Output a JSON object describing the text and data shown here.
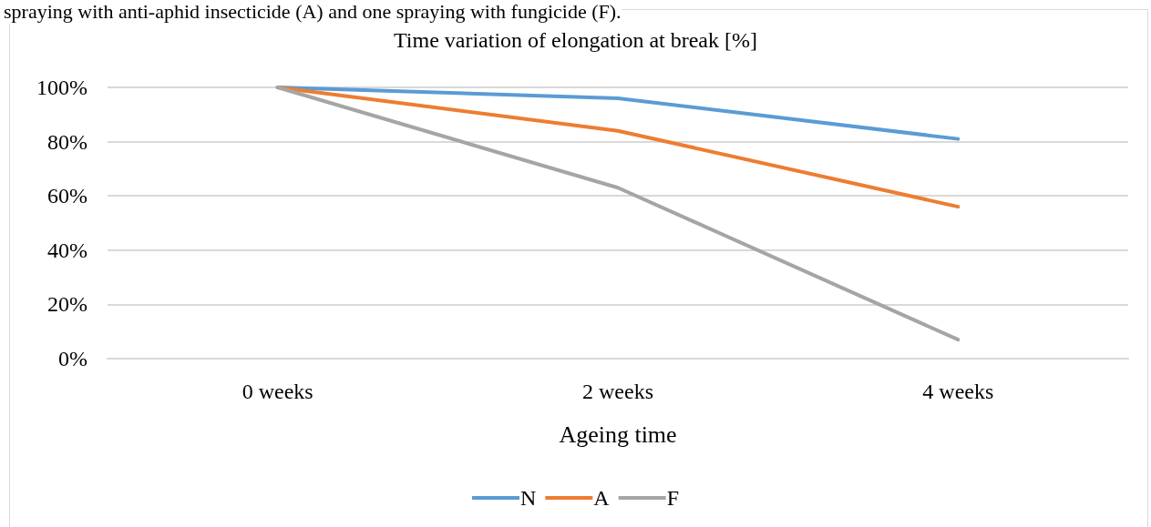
{
  "chart_data": {
    "type": "line",
    "title": "Time variation of elongation at break [%]",
    "xlabel": "Ageing time",
    "annotations": [
      "spraying with anti-aphid insecticide (A) and one spraying with fungicide (F)."
    ],
    "categories": [
      "0 weeks",
      "2 weeks",
      "4 weeks"
    ],
    "series": [
      {
        "name": "N",
        "color": "#5b9bd5",
        "values": [
          100,
          96,
          81
        ]
      },
      {
        "name": "A",
        "color": "#ed7d31",
        "values": [
          100,
          84,
          56
        ]
      },
      {
        "name": "F",
        "color": "#a5a5a5",
        "values": [
          100,
          63,
          7
        ]
      }
    ],
    "ylim": [
      0,
      100
    ],
    "yticks": [
      {
        "value": 0,
        "label": "0%"
      },
      {
        "value": 20,
        "label": "20%"
      },
      {
        "value": 40,
        "label": "40%"
      },
      {
        "value": 60,
        "label": "60%"
      },
      {
        "value": 80,
        "label": "80%"
      },
      {
        "value": 100,
        "label": "100%"
      }
    ],
    "grid": "y",
    "legend": "bottom",
    "marker": "none",
    "line_style": "solid"
  }
}
